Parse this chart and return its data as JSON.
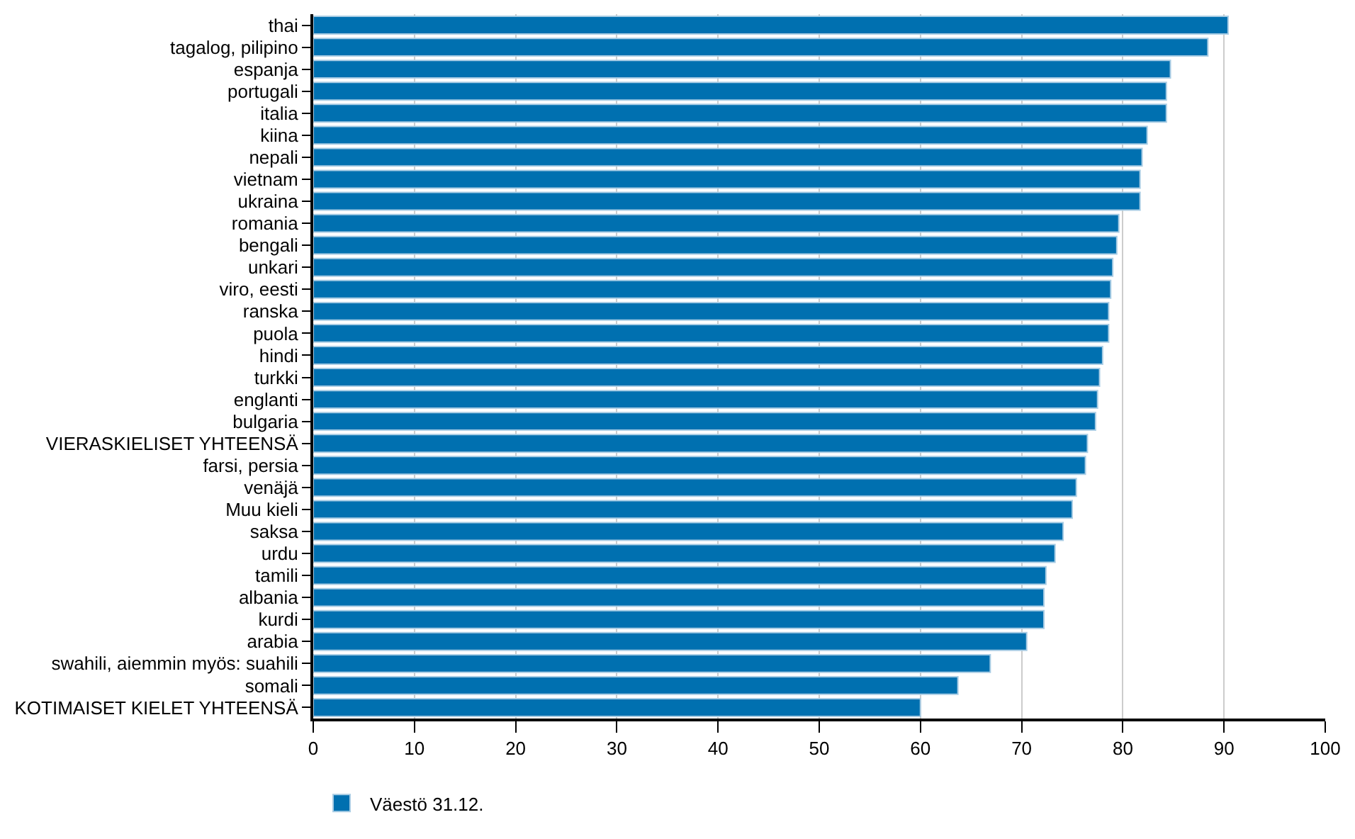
{
  "chart_data": {
    "type": "bar",
    "orientation": "horizontal",
    "categories": [
      "thai",
      "tagalog, pilipino",
      "espanja",
      "portugali",
      "italia",
      "kiina",
      "nepali",
      "vietnam",
      "ukraina",
      "romania",
      "bengali",
      "unkari",
      "viro, eesti",
      "ranska",
      "puola",
      "hindi",
      "turkki",
      "englanti",
      "bulgaria",
      "VIERASKIELISET YHTEENSÄ",
      "farsi, persia",
      "venäjä",
      "Muu kieli",
      "saksa",
      "urdu",
      "tamili",
      "albania",
      "kurdi",
      "arabia",
      "swahili, aiemmin myös: suahili",
      "somali",
      "KOTIMAISET KIELET YHTEENSÄ"
    ],
    "series": [
      {
        "name": "Väestö 31.12.",
        "color": "#0070b0",
        "values": [
          90.4,
          88.4,
          84.7,
          84.3,
          84.3,
          82.4,
          81.9,
          81.7,
          81.7,
          79.6,
          79.4,
          79.0,
          78.8,
          78.6,
          78.6,
          78.0,
          77.7,
          77.5,
          77.3,
          76.5,
          76.3,
          75.4,
          75.0,
          74.1,
          73.3,
          72.4,
          72.2,
          72.2,
          70.5,
          66.9,
          63.7,
          60.0
        ]
      }
    ],
    "xlim": [
      0,
      100
    ],
    "xticks": [
      0,
      10,
      20,
      30,
      40,
      50,
      60,
      70,
      80,
      90,
      100
    ],
    "grid": "x",
    "legend": "bottom left"
  }
}
